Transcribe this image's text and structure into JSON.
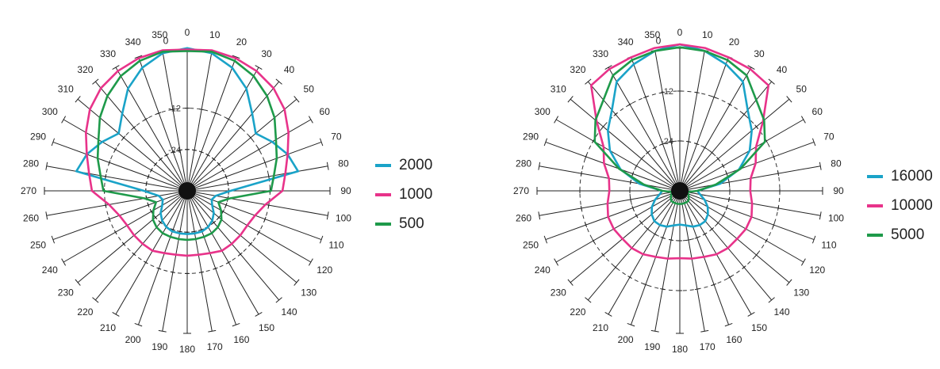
{
  "chart_data": [
    {
      "type": "polar-line",
      "angles_deg": [
        0,
        10,
        20,
        30,
        40,
        50,
        60,
        70,
        80,
        90,
        100,
        110,
        120,
        130,
        140,
        150,
        160,
        170,
        180,
        190,
        200,
        210,
        220,
        230,
        240,
        250,
        260,
        270,
        280,
        290,
        300,
        310,
        320,
        330,
        340,
        350
      ],
      "angle_labels": [
        "0",
        "10",
        "20",
        "30",
        "40",
        "50",
        "60",
        "70",
        "80",
        "90",
        "100",
        "110",
        "120",
        "130",
        "140",
        "150",
        "160",
        "170",
        "180",
        "190",
        "200",
        "210",
        "220",
        "230",
        "240",
        "250",
        "260",
        "270",
        "280",
        "290",
        "300",
        "310",
        "320",
        "330",
        "340",
        "350"
      ],
      "extra_top_labels": [
        "0"
      ],
      "ring_labels": [
        "-12",
        "-24"
      ],
      "grid": true,
      "legend_position": "right",
      "series": [
        {
          "name": "2000",
          "color": "#1aa3c8",
          "r": [
            0.99,
            0.97,
            0.91,
            0.82,
            0.7,
            0.62,
            0.68,
            0.74,
            0.78,
            0.3,
            0.2,
            0.18,
            0.2,
            0.24,
            0.27,
            0.29,
            0.3,
            0.3,
            0.3,
            0.3,
            0.3,
            0.29,
            0.27,
            0.24,
            0.2,
            0.18,
            0.2,
            0.3,
            0.78,
            0.74,
            0.68,
            0.62,
            0.7,
            0.82,
            0.91,
            0.97
          ]
        },
        {
          "name": "1000",
          "color": "#e8338a",
          "r": [
            0.98,
            0.99,
            0.98,
            0.96,
            0.93,
            0.88,
            0.81,
            0.74,
            0.69,
            0.66,
            0.55,
            0.5,
            0.48,
            0.48,
            0.48,
            0.48,
            0.46,
            0.45,
            0.45,
            0.45,
            0.46,
            0.48,
            0.48,
            0.48,
            0.48,
            0.5,
            0.55,
            0.66,
            0.69,
            0.74,
            0.81,
            0.88,
            0.93,
            0.96,
            0.98,
            0.99
          ]
        },
        {
          "name": "500",
          "color": "#1e9a4a",
          "r": [
            0.97,
            0.98,
            0.96,
            0.92,
            0.86,
            0.79,
            0.71,
            0.66,
            0.61,
            0.58,
            0.3,
            0.23,
            0.27,
            0.31,
            0.33,
            0.34,
            0.34,
            0.34,
            0.34,
            0.34,
            0.34,
            0.34,
            0.33,
            0.31,
            0.27,
            0.23,
            0.3,
            0.58,
            0.61,
            0.66,
            0.71,
            0.79,
            0.86,
            0.92,
            0.96,
            0.98
          ]
        }
      ]
    },
    {
      "type": "polar-line",
      "angles_deg": [
        0,
        10,
        20,
        30,
        40,
        50,
        60,
        70,
        80,
        90,
        100,
        110,
        120,
        130,
        140,
        150,
        160,
        170,
        180,
        190,
        200,
        210,
        220,
        230,
        240,
        250,
        260,
        270,
        280,
        290,
        300,
        310,
        320,
        330,
        340,
        350
      ],
      "angle_labels": [
        "0",
        "10",
        "20",
        "30",
        "40",
        "50",
        "60",
        "70",
        "80",
        "90",
        "100",
        "110",
        "120",
        "130",
        "140",
        "150",
        "160",
        "170",
        "180",
        "190",
        "200",
        "210",
        "220",
        "230",
        "240",
        "250",
        "260",
        "270",
        "280",
        "290",
        "300",
        "310",
        "320",
        "330",
        "340",
        "350"
      ],
      "extra_top_labels": [
        "0"
      ],
      "ring_labels": [
        "-12",
        "-24"
      ],
      "grid": true,
      "legend_position": "right",
      "series": [
        {
          "name": "16000",
          "color": "#1aa3c8",
          "r": [
            1.0,
            0.97,
            0.92,
            0.86,
            0.72,
            0.64,
            0.55,
            0.43,
            0.28,
            0.12,
            0.14,
            0.18,
            0.22,
            0.25,
            0.27,
            0.27,
            0.26,
            0.24,
            0.23,
            0.24,
            0.26,
            0.27,
            0.27,
            0.25,
            0.22,
            0.18,
            0.14,
            0.12,
            0.28,
            0.43,
            0.55,
            0.64,
            0.72,
            0.86,
            0.92,
            0.97
          ]
        },
        {
          "name": "10000",
          "color": "#e8338a",
          "r": [
            1.0,
            0.99,
            0.97,
            0.96,
            0.94,
            0.74,
            0.6,
            0.55,
            0.49,
            0.48,
            0.5,
            0.52,
            0.52,
            0.51,
            0.51,
            0.5,
            0.48,
            0.47,
            0.46,
            0.47,
            0.48,
            0.5,
            0.51,
            0.51,
            0.52,
            0.52,
            0.5,
            0.48,
            0.49,
            0.55,
            0.6,
            0.74,
            0.94,
            0.96,
            0.97,
            0.99
          ]
        },
        {
          "name": "5000",
          "color": "#1e9a4a",
          "r": [
            0.98,
            0.97,
            0.95,
            0.91,
            0.81,
            0.75,
            0.67,
            0.44,
            0.25,
            0.12,
            0.05,
            0.06,
            0.07,
            0.08,
            0.09,
            0.09,
            0.09,
            0.09,
            0.09,
            0.09,
            0.09,
            0.09,
            0.09,
            0.08,
            0.07,
            0.06,
            0.05,
            0.12,
            0.25,
            0.44,
            0.67,
            0.75,
            0.81,
            0.91,
            0.95,
            0.97
          ]
        }
      ]
    }
  ]
}
